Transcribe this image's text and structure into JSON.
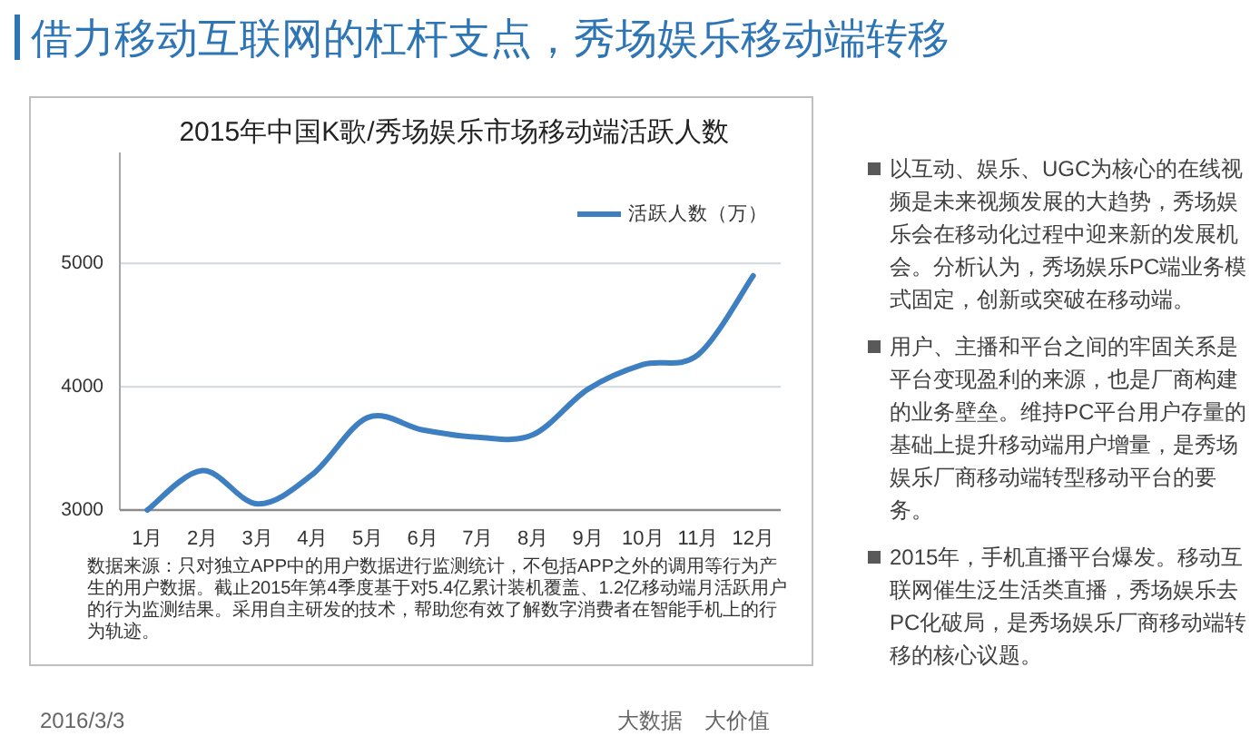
{
  "chart_data": {
    "type": "line",
    "title": "借力移动互联网的杠杆支点，秀场娱乐移动端转移",
    "subtitle": "2015年中国K歌/秀场娱乐市场移动端活跃人数",
    "categories": [
      "1月",
      "2月",
      "3月",
      "4月",
      "5月",
      "6月",
      "7月",
      "8月",
      "9月",
      "10月",
      "11月",
      "12月"
    ],
    "series": [
      {
        "name": "活跃人数（万）",
        "color": "#3d7fc1",
        "values": [
          3000,
          3320,
          3050,
          3290,
          3750,
          3650,
          3590,
          3610,
          3980,
          4180,
          4260,
          4900
        ]
      }
    ],
    "ylim": [
      3000,
      5900
    ],
    "yticks": [
      3000,
      4000,
      5000
    ],
    "grid": "y",
    "legend": "top right",
    "annotations": [
      "数据来源：只对独立APP中的用户数据进行监测统计，不包括APP之外的调用等行为产生的用户数据。截止2015年第4季度基于对5.4亿累计装机覆盖、1.2亿移动端月活跃用户的行为监测结果。采用自主研发的技术，帮助您有效了解数字消费者在智能手机上的行为轨迹。",
      "以互动、娱乐、UGC为核心的在线视频是未来视频发展的大趋势，秀场娱乐会在移动化过程中迎来新的发展机会。分析认为，秀场娱乐PC端业务模式固定，创新或突破在移动端。",
      "用户、主播和平台之间的牢固关系是平台变现盈利的来源，也是厂商构建的业务壁垒。维持PC平台用户存量的基础上提升移动端用户增量，是秀场娱乐厂商移动端转型移动平台的要务。",
      "2015年，手机直播平台爆发。移动互联网催生泛生活类直播，秀场娱乐去PC化破局，是秀场娱乐厂商移动端转移的核心议题。",
      "2016/3/3",
      "大数据　大价值"
    ]
  }
}
